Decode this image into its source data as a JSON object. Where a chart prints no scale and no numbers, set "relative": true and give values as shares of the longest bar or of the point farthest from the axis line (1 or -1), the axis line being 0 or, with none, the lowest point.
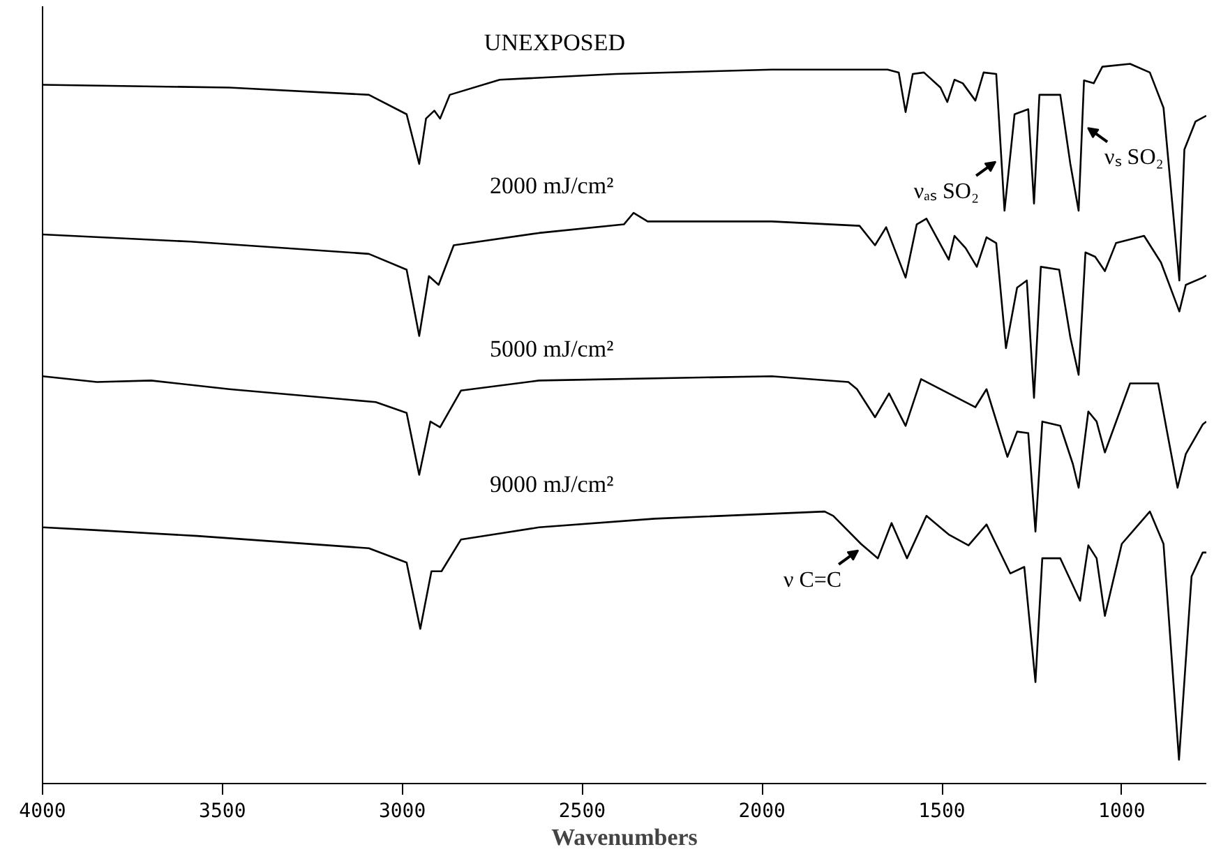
{
  "chart_data": {
    "type": "line",
    "relative": true,
    "xlabel": "Wavenumbers",
    "xlim": [
      4000,
      765
    ],
    "xticks": [
      4000,
      3500,
      3000,
      2500,
      2000,
      1500,
      1000
    ],
    "grid": false,
    "legend": false,
    "tick_labels": "x",
    "series": [
      {
        "name": "UNEXPOSED",
        "color": "#000000",
        "x": [
          4000,
          3481,
          3093,
          2988,
          2953,
          2934,
          2911,
          2895,
          2868,
          2729,
          2407,
          1973,
          1651,
          1620,
          1601,
          1581,
          1550,
          1504,
          1485,
          1465,
          1442,
          1407,
          1384,
          1349,
          1326,
          1298,
          1260,
          1244,
          1229,
          1171,
          1143,
          1120,
          1105,
          1078,
          1054,
          977,
          922,
          884,
          840,
          826,
          795,
          765
        ],
        "values": [
          0.971,
          0.967,
          0.957,
          0.93,
          0.861,
          0.924,
          0.935,
          0.924,
          0.957,
          0.978,
          0.986,
          0.992,
          0.992,
          0.988,
          0.933,
          0.986,
          0.988,
          0.967,
          0.947,
          0.978,
          0.973,
          0.949,
          0.988,
          0.986,
          0.796,
          0.93,
          0.937,
          0.806,
          0.957,
          0.957,
          0.861,
          0.796,
          0.977,
          0.973,
          0.996,
          1.0,
          0.988,
          0.939,
          0.699,
          0.881,
          0.92,
          0.928
        ]
      },
      {
        "name": "2000  mJ/cm²",
        "color": "#000000",
        "x": [
          4000,
          3589,
          3093,
          2988,
          2953,
          2926,
          2899,
          2857,
          2620,
          2384,
          2357,
          2318,
          1973,
          1729,
          1686,
          1655,
          1601,
          1570,
          1543,
          1481,
          1465,
          1434,
          1403,
          1376,
          1349,
          1322,
          1291,
          1264,
          1244,
          1225,
          1174,
          1143,
          1120,
          1101,
          1074,
          1047,
          1016,
          938,
          891,
          840,
          822,
          775,
          765
        ],
        "values": [
          0.763,
          0.753,
          0.736,
          0.714,
          0.622,
          0.705,
          0.693,
          0.748,
          0.765,
          0.777,
          0.793,
          0.781,
          0.781,
          0.775,
          0.748,
          0.773,
          0.703,
          0.777,
          0.785,
          0.728,
          0.761,
          0.744,
          0.718,
          0.759,
          0.751,
          0.605,
          0.689,
          0.699,
          0.536,
          0.718,
          0.714,
          0.62,
          0.568,
          0.738,
          0.732,
          0.712,
          0.751,
          0.761,
          0.724,
          0.656,
          0.693,
          0.703,
          0.706
        ]
      },
      {
        "name": "5000  mJ/cm²",
        "color": "#000000",
        "x": [
          4000,
          3849,
          3698,
          3481,
          3074,
          2988,
          2953,
          2922,
          2895,
          2837,
          2620,
          1973,
          1760,
          1736,
          1686,
          1647,
          1601,
          1558,
          1481,
          1407,
          1376,
          1318,
          1291,
          1260,
          1240,
          1221,
          1171,
          1136,
          1120,
          1093,
          1070,
          1047,
          977,
          899,
          872,
          845,
          822,
          775,
          765
        ],
        "values": [
          0.566,
          0.558,
          0.56,
          0.548,
          0.53,
          0.515,
          0.429,
          0.503,
          0.495,
          0.546,
          0.56,
          0.566,
          0.558,
          0.548,
          0.509,
          0.542,
          0.497,
          0.562,
          0.542,
          0.523,
          0.548,
          0.454,
          0.489,
          0.487,
          0.35,
          0.503,
          0.497,
          0.444,
          0.411,
          0.517,
          0.503,
          0.46,
          0.556,
          0.556,
          0.483,
          0.411,
          0.458,
          0.499,
          0.503
        ]
      },
      {
        "name": "9000  mJ/cm²",
        "color": "#000000",
        "x": [
          4000,
          3849,
          3570,
          3093,
          2988,
          2950,
          2919,
          2891,
          2837,
          2620,
          2298,
          1826,
          1802,
          1725,
          1678,
          1640,
          1597,
          1543,
          1481,
          1426,
          1376,
          1310,
          1271,
          1240,
          1221,
          1171,
          1116,
          1093,
          1070,
          1047,
          1000,
          922,
          884,
          841,
          806,
          775,
          765
        ],
        "values": [
          0.356,
          0.352,
          0.344,
          0.327,
          0.307,
          0.215,
          0.295,
          0.295,
          0.339,
          0.356,
          0.368,
          0.378,
          0.372,
          0.333,
          0.313,
          0.362,
          0.313,
          0.372,
          0.346,
          0.331,
          0.36,
          0.292,
          0.301,
          0.141,
          0.313,
          0.313,
          0.254,
          0.331,
          0.313,
          0.233,
          0.333,
          0.378,
          0.333,
          0.033,
          0.288,
          0.321,
          0.321
        ]
      }
    ],
    "annotations": [
      {
        "text": "νₐₛ SO₂",
        "x": 1335,
        "y": 0.87
      },
      {
        "text": "νₛ SO₂",
        "x": 1110,
        "y": 0.917
      },
      {
        "text": "ν C=C",
        "x": 1717,
        "y": 0.33
      }
    ]
  }
}
